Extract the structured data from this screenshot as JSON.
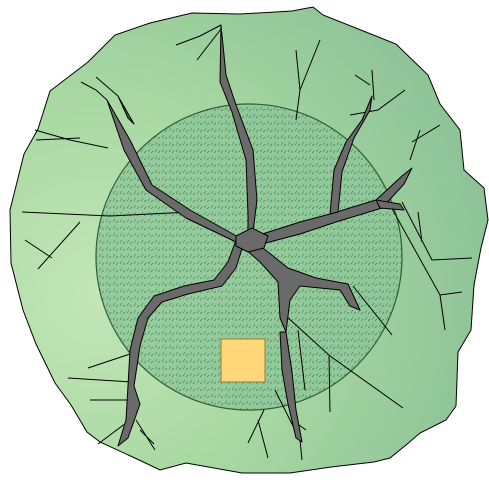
{
  "colors": {
    "background": "#ffffff",
    "region_light": "#c3e6b7",
    "region_mid": "#a8d8a2",
    "region_dark": "#86bd95",
    "outline": "#000000",
    "core_fill": "#8fc79a",
    "core_pattern": "#2f6a3e",
    "core_outline": "#2f5e34",
    "channel_fill": "#6a6a6a",
    "channel_outline": "#000000",
    "marker_fill": "#ffd77a",
    "marker_outline": "#9c7b2a"
  },
  "icons": {
    "outer_region": "irregular-polygon",
    "core_zone": "hatched-circle",
    "channels": "branching-network",
    "marker": "square"
  }
}
